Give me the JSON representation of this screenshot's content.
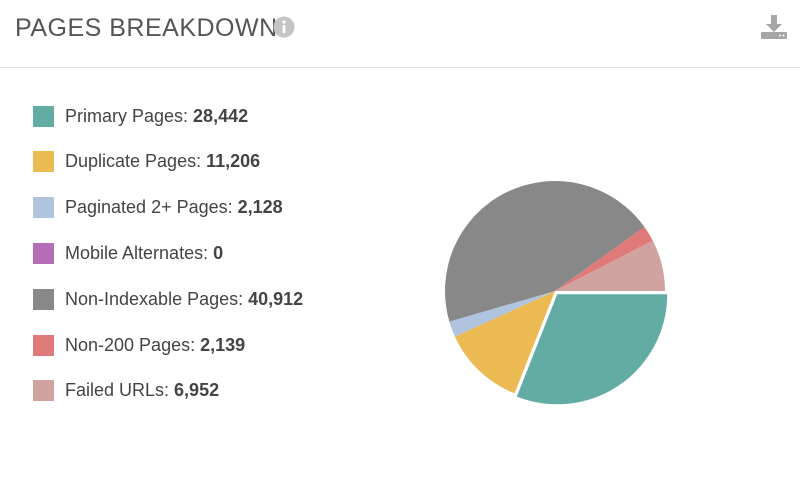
{
  "header": {
    "title": "PAGES BREAKDOWN",
    "info_icon": "info-icon",
    "download_icon": "download-icon"
  },
  "chart_data": {
    "type": "pie",
    "slices": [
      {
        "label": "Primary Pages:",
        "value": 28442,
        "value_text": "28,442",
        "color": "#63aca4"
      },
      {
        "label": "Duplicate Pages:",
        "value": 11206,
        "value_text": "11,206",
        "color": "#ecba53"
      },
      {
        "label": "Paginated 2+ Pages:",
        "value": 2128,
        "value_text": "2,128",
        "color": "#b0c3df"
      },
      {
        "label": "Mobile Alternates:",
        "value": 0,
        "value_text": "0",
        "color": "#b46db6"
      },
      {
        "label": "Non-Indexable Pages:",
        "value": 40912,
        "value_text": "40,912",
        "color": "#888888"
      },
      {
        "label": "Non-200 Pages:",
        "value": 2139,
        "value_text": "2,139",
        "color": "#e07a7a"
      },
      {
        "label": "Failed URLs:",
        "value": 6952,
        "value_text": "6,952",
        "color": "#d1a3a0"
      }
    ],
    "legend_position": "left",
    "start_angle_deg": 0,
    "direction": "clockwise",
    "exploded_slice": "Primary Pages:"
  }
}
